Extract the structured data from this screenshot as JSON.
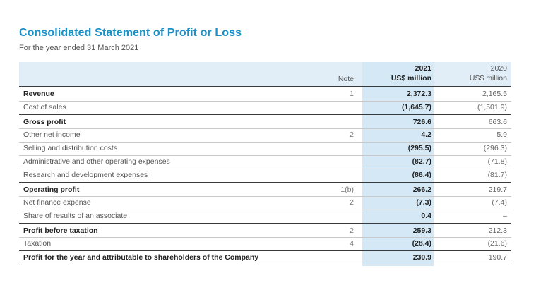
{
  "title": "Consolidated Statement of Profit or Loss",
  "subtitle": "For the year ended 31 March 2021",
  "columns": {
    "note": "Note",
    "current_year": "2021",
    "current_unit": "US$ million",
    "prior_year": "2020",
    "prior_unit": "US$ million"
  },
  "rows": [
    {
      "label": "Revenue",
      "note": "1",
      "current": "2,372.3",
      "prior": "2,165.5"
    },
    {
      "label": "Cost of sales",
      "note": "",
      "current": "(1,645.7)",
      "prior": "(1,501.9)"
    },
    {
      "label": "Gross profit",
      "note": "",
      "current": "726.6",
      "prior": "663.6"
    },
    {
      "label": "Other net income",
      "note": "2",
      "current": "4.2",
      "prior": "5.9"
    },
    {
      "label": "Selling and distribution costs",
      "note": "",
      "current": "(295.5)",
      "prior": "(296.3)"
    },
    {
      "label": "Administrative and other operating expenses",
      "note": "",
      "current": "(82.7)",
      "prior": "(71.8)"
    },
    {
      "label": "Research and development expenses",
      "note": "",
      "current": "(86.4)",
      "prior": "(81.7)"
    },
    {
      "label": "Operating profit",
      "note": "1(b)",
      "current": "266.2",
      "prior": "219.7"
    },
    {
      "label": "Net finance expense",
      "note": "2",
      "current": "(7.3)",
      "prior": "(7.4)"
    },
    {
      "label": "Share of results of an associate",
      "note": "",
      "current": "0.4",
      "prior": "–"
    },
    {
      "label": "Profit before taxation",
      "note": "2",
      "current": "259.3",
      "prior": "212.3"
    },
    {
      "label": "Taxation",
      "note": "4",
      "current": "(28.4)",
      "prior": "(21.6)"
    },
    {
      "label": "Profit for the year and attributable to shareholders of the Company",
      "note": "",
      "current": "230.9",
      "prior": "190.7"
    }
  ]
}
